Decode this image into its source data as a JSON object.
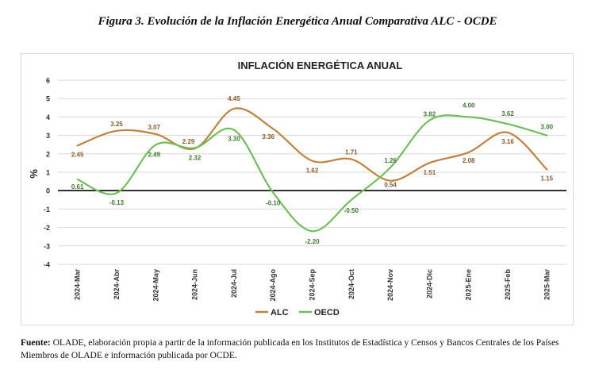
{
  "figure_title": "Figura 3. Evolución de la Inflación Energética Anual Comparativa ALC - OCDE",
  "source": {
    "label": "Fuente:",
    "text": "OLADE, elaboración propia a partir de la información publicada en los Institutos de Estadística y Censos y Bancos Centrales de los Países Miembros de OLADE e información publicada por OCDE."
  },
  "chart_data": {
    "type": "line",
    "title": "INFLACIÓN ENERGÉTICA ANUAL",
    "xlabel": "",
    "ylabel": "%",
    "categories": [
      "2024-Mar",
      "2024-Abr",
      "2024-May",
      "2024-Jun",
      "2024-Jul",
      "2024-Ago",
      "2024-Sep",
      "2024-Oct",
      "2024-Nov",
      "2024-Dic",
      "2025-Ene",
      "2025-Feb",
      "2025-Mar"
    ],
    "ylim": [
      -4,
      6
    ],
    "yticks": [
      -4,
      -3,
      -2,
      -1,
      0,
      1,
      2,
      3,
      4,
      5,
      6
    ],
    "grid": true,
    "legend_position": "bottom",
    "series": [
      {
        "name": "ALC",
        "color": "#c0823f",
        "values": [
          2.45,
          3.25,
          3.07,
          2.29,
          4.45,
          3.36,
          1.62,
          1.71,
          0.54,
          1.51,
          2.08,
          3.16,
          1.15
        ],
        "labels": [
          "2.45",
          "3.25",
          "3.07",
          "2.29",
          "4.45",
          "3.36",
          "1.62",
          "1.71",
          "0.54",
          "1.51",
          "2.08",
          "3.16",
          "1.15"
        ]
      },
      {
        "name": "OECD",
        "color": "#6fbf5a",
        "values": [
          0.61,
          -0.13,
          2.49,
          2.32,
          3.3,
          -0.1,
          -2.2,
          -0.5,
          1.26,
          3.82,
          4.0,
          3.62,
          3.0
        ],
        "labels": [
          "0.61",
          "-0.13",
          "2.49",
          "2.32",
          "3.30",
          "-0.10",
          "-2.20",
          "-0.50",
          "1.26",
          "3.82",
          "4.00",
          "3.62",
          "3.00"
        ]
      }
    ]
  }
}
